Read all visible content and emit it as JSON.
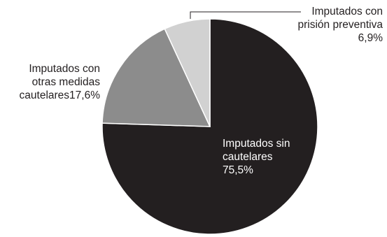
{
  "chart_data": {
    "type": "pie",
    "title": "",
    "start_angle_deg": 0,
    "direction": "clockwise",
    "slices": [
      {
        "name": "Imputados sin cautelares",
        "value": 75.5,
        "color": "#231f20",
        "label_lines": [
          "Imputados sin",
          "cautelares",
          "75,5%"
        ]
      },
      {
        "name": "Imputados con otras medidas cautelares",
        "value": 17.6,
        "color": "#8c8c8c",
        "label_lines": [
          "Imputados con",
          "otras medidas",
          "cautelares17,6%"
        ]
      },
      {
        "name": "Imputados con prisión preventiva",
        "value": 6.9,
        "color": "#d1d1d1",
        "label_lines": [
          "Imputados con",
          "prisión preventiva",
          "6,9%"
        ]
      }
    ],
    "stroke_color": "#ffffff"
  }
}
